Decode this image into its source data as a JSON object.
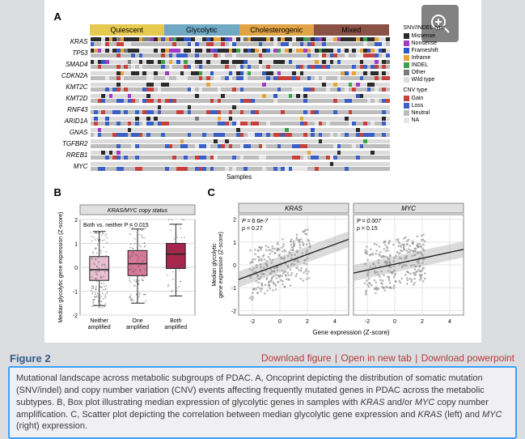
{
  "figure_number": "Figure 2",
  "links": {
    "download_figure": "Download figure",
    "open_tab": "Open in new tab",
    "download_ppt": "Download powerpoint"
  },
  "caption": {
    "lead": "Mutational landscape across metabolic subgroups of PDAC.",
    "a": "A, Oncoprint depicting the distribution of somatic mutation (SNV/indel) and copy number variation (CNV) events affecting frequently mutated genes in PDAC across the metabolic subtypes.",
    "b_prefix": "B, Box plot illustrating median expression of glycolytic genes in samples with ",
    "b_gene1": "KRAS",
    "b_mid": " and/or ",
    "b_gene2": "MYC",
    "b_suffix": " copy number amplification.",
    "c_prefix": "C, Scatter plot depicting the correlation between median glycolytic gene expression and ",
    "c_gene1": "KRAS",
    "c_mid": " (left) and ",
    "c_gene2": "MYC",
    "c_suffix": " (right) expression."
  },
  "panelA": {
    "label": "A",
    "subtypes": [
      {
        "name": "Quiescent",
        "color": "#e6c94f"
      },
      {
        "name": "Glycolytic",
        "color": "#6fa9c4"
      },
      {
        "name": "Cholesterogenic",
        "color": "#e0a346"
      },
      {
        "name": "Mixed",
        "color": "#8a5246"
      }
    ],
    "genes": [
      "KRAS",
      "TP53",
      "SMAD4",
      "CDKN2A",
      "KMT2C",
      "KMT2D",
      "RNF43",
      "ARID1A",
      "GNAS",
      "TGFBR2",
      "RREB1",
      "MYC"
    ],
    "samples_label": "Samples",
    "snvindel_legend_title": "SNV/INDEL type",
    "snvindel_legend": [
      {
        "label": "Missense",
        "color": "#2a2a2a"
      },
      {
        "label": "Nonsense",
        "color": "#a23ac2"
      },
      {
        "label": "Frameshift",
        "color": "#2f58c7"
      },
      {
        "label": "Inframe",
        "color": "#e8a33a"
      },
      {
        "label": "INDEL",
        "color": "#3aa24a"
      },
      {
        "label": "Other",
        "color": "#7a7a7a"
      },
      {
        "label": "Wild type",
        "color": "#dcdcdc"
      }
    ],
    "cnv_legend_title": "CNV type",
    "cnv_legend": [
      {
        "label": "Gain",
        "color": "#c7413a"
      },
      {
        "label": "Loss",
        "color": "#3a5fc7"
      },
      {
        "label": "Neutral",
        "color": "#bdbdbd"
      },
      {
        "label": "NA",
        "color": "#e6e6e6"
      }
    ],
    "cells_per_subtype": 20,
    "row_palette": [
      "#2a2a2a",
      "#a23ac2",
      "#2f58c7",
      "#e8a33a",
      "#3aa24a",
      "#7a7a7a",
      "#dcdcdc"
    ],
    "cnv_palette": [
      "#c7413a",
      "#3a5fc7",
      "#bdbdbd",
      "#e6e6e6"
    ],
    "mutation_density": {
      "KRAS": 0.92,
      "TP53": 0.72,
      "SMAD4": 0.4,
      "CDKN2A": 0.35,
      "KMT2C": 0.18,
      "KMT2D": 0.15,
      "RNF43": 0.1,
      "ARID1A": 0.12,
      "GNAS": 0.08,
      "TGFBR2": 0.07,
      "RREB1": 0.06,
      "MYC": 0.05
    }
  },
  "panelB": {
    "label": "B",
    "title": "KRAS/MYC copy status",
    "pvalue": "Both vs. neither P = 0.015",
    "ylab": "Median glycolytic gene expression (Z-score)",
    "categories": [
      "Neither\namplified",
      "One\namplified",
      "Both\namplified"
    ],
    "ylim": [
      -2,
      2
    ],
    "yticks": [
      -2,
      -1,
      0,
      1,
      2
    ],
    "boxes": [
      {
        "q1": -0.55,
        "med": -0.1,
        "q3": 0.45,
        "lo": -1.6,
        "hi": 1.5,
        "color": "#e7bfcf",
        "n": 140
      },
      {
        "q1": -0.35,
        "med": 0.15,
        "q3": 0.7,
        "lo": -1.5,
        "hi": 1.6,
        "color": "#d57a98",
        "n": 95
      },
      {
        "q1": -0.05,
        "med": 0.55,
        "q3": 1.0,
        "lo": -1.2,
        "hi": 1.8,
        "color": "#a6264e",
        "n": 35
      }
    ],
    "jitter_color": "#4a4a4a",
    "bg": "#ffffff",
    "grid_color": "#d8d8d8",
    "border_color": "#888888"
  },
  "panelC": {
    "label": "C",
    "ylab": "Median glycolytic\ngene expression (Z-score)",
    "xlab": "Gene expression (Z-score)",
    "xlim": [
      -3,
      5
    ],
    "xticks": [
      -2,
      0,
      2,
      4
    ],
    "ylim": [
      -2.2,
      2.2
    ],
    "yticks": [
      -2,
      -1,
      0,
      1,
      2
    ],
    "panels": [
      {
        "gene": "KRAS",
        "p": "P = 6.6e-7",
        "rho": "ρ = 0.27",
        "slope": 0.22,
        "intercept": 0.02,
        "n": 260
      },
      {
        "gene": "MYC",
        "p": "P = 0.007",
        "rho": "ρ = 0.15",
        "slope": 0.13,
        "intercept": 0.03,
        "n": 260
      }
    ],
    "point_color": "#8a8a8a",
    "point_size": 1.3,
    "line_color": "#1a1a1a",
    "ribbon_color": "#b8b8b8",
    "panel_border": "#888888",
    "strip_bg": "#e0e0e0"
  }
}
